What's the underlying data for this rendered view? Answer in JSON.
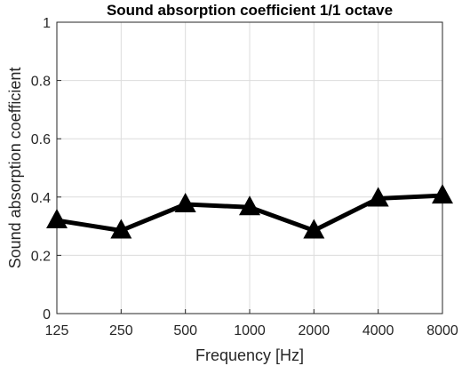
{
  "chart_data": {
    "type": "line",
    "title": "Sound absorption coefficient 1/1 octave",
    "xlabel": "Frequency [Hz]",
    "ylabel": "Sound absorption coefficient",
    "categories": [
      "125",
      "250",
      "500",
      "1000",
      "2000",
      "4000",
      "8000"
    ],
    "series": [
      {
        "values": [
          0.32,
          0.285,
          0.375,
          0.365,
          0.285,
          0.395,
          0.405
        ]
      }
    ],
    "ylim": [
      0,
      1
    ],
    "yticks": [
      "0",
      "0.2",
      "0.4",
      "0.6",
      "0.8",
      "1"
    ],
    "grid": true,
    "marker": "triangle",
    "line_color": "#000000"
  }
}
